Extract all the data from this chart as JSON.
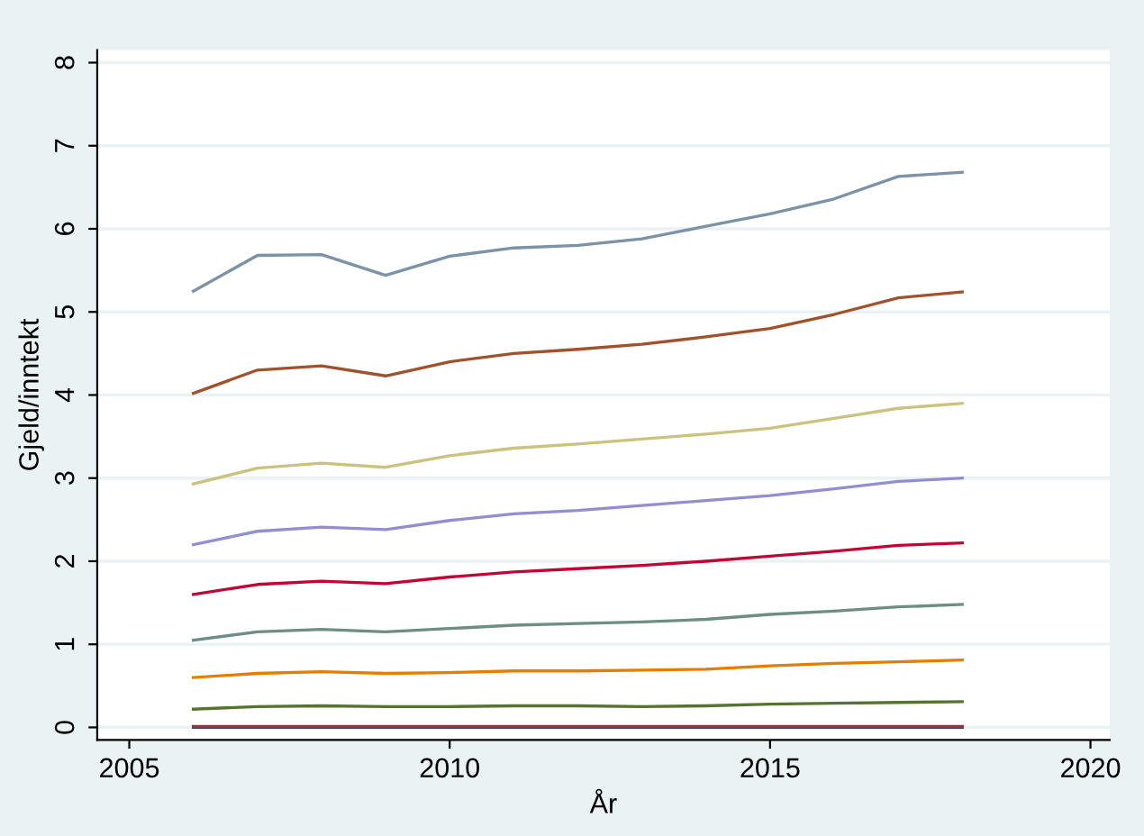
{
  "chart_data": {
    "type": "line",
    "xlabel": "År",
    "ylabel": "Gjeld/inntekt",
    "x": [
      2006,
      2007,
      2008,
      2009,
      2010,
      2011,
      2012,
      2013,
      2014,
      2015,
      2016,
      2017,
      2018
    ],
    "xlim": [
      2004.5,
      2020.3
    ],
    "xticks": [
      2005,
      2010,
      2015,
      2020
    ],
    "ylim": [
      -0.15,
      8.15
    ],
    "yticks": [
      0,
      1,
      2,
      3,
      4,
      5,
      6,
      7,
      8
    ],
    "grid": "y",
    "legend": false,
    "line_style": "solid",
    "marker": "none",
    "series": [
      {
        "color": "#1a476f",
        "values": [
          0.0,
          0.0,
          0.0,
          0.0,
          0.0,
          0.0,
          0.0,
          0.0,
          0.0,
          0.0,
          0.0,
          0.0,
          0.0
        ]
      },
      {
        "color": "#90353b",
        "values": [
          0.01,
          0.01,
          0.01,
          0.01,
          0.01,
          0.01,
          0.01,
          0.01,
          0.01,
          0.01,
          0.01,
          0.01,
          0.01
        ]
      },
      {
        "color": "#55752f",
        "values": [
          0.22,
          0.25,
          0.26,
          0.25,
          0.25,
          0.26,
          0.26,
          0.25,
          0.26,
          0.28,
          0.29,
          0.3,
          0.31
        ]
      },
      {
        "color": "#e37e00",
        "values": [
          0.6,
          0.65,
          0.67,
          0.65,
          0.66,
          0.68,
          0.68,
          0.69,
          0.7,
          0.74,
          0.77,
          0.79,
          0.81
        ]
      },
      {
        "color": "#6e8e84",
        "values": [
          1.05,
          1.15,
          1.18,
          1.15,
          1.19,
          1.23,
          1.25,
          1.27,
          1.3,
          1.36,
          1.4,
          1.45,
          1.48
        ]
      },
      {
        "color": "#c10534",
        "values": [
          1.6,
          1.72,
          1.76,
          1.73,
          1.81,
          1.87,
          1.91,
          1.95,
          2.0,
          2.06,
          2.12,
          2.19,
          2.22
        ]
      },
      {
        "color": "#938dd2",
        "values": [
          2.2,
          2.36,
          2.41,
          2.38,
          2.49,
          2.57,
          2.61,
          2.67,
          2.73,
          2.79,
          2.87,
          2.96,
          3.0
        ]
      },
      {
        "color": "#cac27e",
        "values": [
          2.93,
          3.12,
          3.18,
          3.13,
          3.27,
          3.36,
          3.41,
          3.47,
          3.53,
          3.6,
          3.72,
          3.84,
          3.9
        ]
      },
      {
        "color": "#a0522d",
        "values": [
          4.02,
          4.3,
          4.35,
          4.23,
          4.4,
          4.5,
          4.55,
          4.61,
          4.7,
          4.8,
          4.97,
          5.17,
          5.24
        ]
      },
      {
        "color": "#7b92a8",
        "values": [
          5.25,
          5.68,
          5.69,
          5.44,
          5.67,
          5.77,
          5.8,
          5.88,
          6.03,
          6.18,
          6.36,
          6.63,
          6.68
        ]
      }
    ]
  }
}
